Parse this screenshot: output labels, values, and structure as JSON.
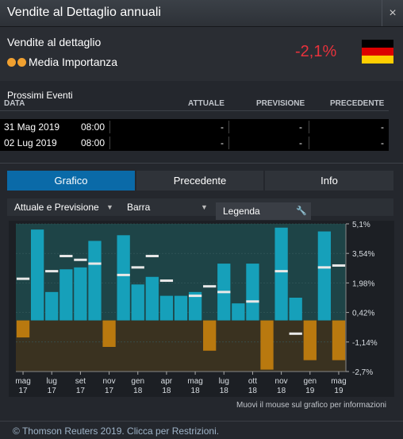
{
  "window": {
    "title": "Vendite al Dettaglio annuali",
    "close_label": "×"
  },
  "indicator": {
    "name": "Vendite al dettaglio",
    "importance_label": "Media Importanza",
    "value": "-2,1%",
    "value_color": "#e8323c",
    "country_flag": "germany-flag-icon",
    "flag_colors": [
      "#000000",
      "#dd0000",
      "#ffce00"
    ]
  },
  "events": {
    "title": "Prossimi Eventi",
    "columns": [
      "DATA",
      "ATTUALE",
      "PREVISIONE",
      "PRECEDENTE"
    ],
    "rows": [
      {
        "date": "31 Mag 2019",
        "time": "08:00",
        "actual": "-",
        "forecast": "-",
        "previous": "-"
      },
      {
        "date": "02 Lug 2019",
        "time": "08:00",
        "actual": "-",
        "forecast": "-",
        "previous": "-"
      }
    ]
  },
  "tabs": [
    {
      "label": "Grafico",
      "active": true
    },
    {
      "label": "Precedente",
      "active": false
    },
    {
      "label": "Info",
      "active": false
    }
  ],
  "controls": {
    "series_select": "Attuale e Previsione",
    "type_select": "Barra",
    "legend_button": "Legenda"
  },
  "chart_data": {
    "type": "bar",
    "ylim": [
      -2.7,
      5.1
    ],
    "y_ticks": [
      "5,1%",
      "3,54%",
      "1,98%",
      "0,42%",
      "-1,14%",
      "-2,7%"
    ],
    "y_tick_values": [
      5.1,
      3.54,
      1.98,
      0.42,
      -1.14,
      -2.7
    ],
    "x_tick_labels": [
      {
        "index": 0,
        "month": "mag",
        "year": "17"
      },
      {
        "index": 2,
        "month": "lug",
        "year": "17"
      },
      {
        "index": 4,
        "month": "set",
        "year": "17"
      },
      {
        "index": 6,
        "month": "nov",
        "year": "17"
      },
      {
        "index": 8,
        "month": "gen",
        "year": "18"
      },
      {
        "index": 10,
        "month": "apr",
        "year": "18"
      },
      {
        "index": 12,
        "month": "mag",
        "year": "18"
      },
      {
        "index": 14,
        "month": "lug",
        "year": "18"
      },
      {
        "index": 16,
        "month": "ott",
        "year": "18"
      },
      {
        "index": 18,
        "month": "nov",
        "year": "18"
      },
      {
        "index": 20,
        "month": "gen",
        "year": "19"
      },
      {
        "index": 22,
        "month": "mag",
        "year": "19"
      }
    ],
    "series": [
      {
        "name": "Attuale",
        "values": [
          -0.9,
          4.8,
          1.5,
          2.7,
          2.8,
          4.2,
          -1.4,
          4.5,
          1.9,
          2.3,
          1.3,
          1.3,
          1.5,
          -1.6,
          3.0,
          0.9,
          3.0,
          -2.6,
          4.9,
          1.2,
          -2.1,
          4.7,
          -2.1
        ],
        "color_positive": "#16a0ba",
        "color_negative": "#b9790f"
      },
      {
        "name": "Previsione",
        "values": [
          2.2,
          null,
          2.6,
          3.4,
          3.2,
          3.0,
          null,
          2.4,
          2.8,
          3.4,
          2.1,
          null,
          1.3,
          1.8,
          1.5,
          null,
          1.0,
          null,
          2.6,
          -0.7,
          null,
          2.8,
          2.9
        ],
        "color": "#e8e8e8"
      }
    ],
    "colors": {
      "plot_bg_positive": "#1e4447",
      "plot_bg_negative": "#3a3220"
    }
  },
  "chart_note": "Muovi il mouse sul grafico per informazioni",
  "footer": {
    "copyright": "© Thomson Reuters 2019. Clicca per Restrizioni."
  }
}
